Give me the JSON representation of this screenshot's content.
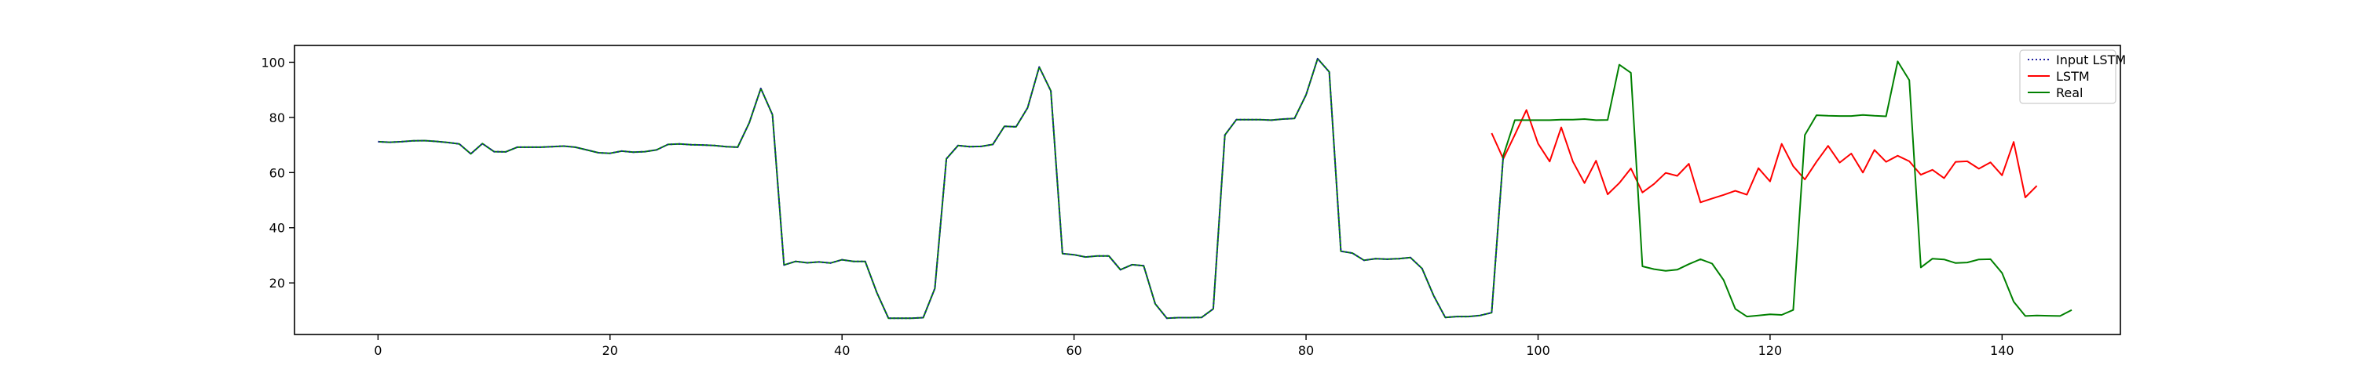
{
  "chart_data": {
    "type": "line",
    "title": "",
    "xlabel": "",
    "ylabel": "",
    "xlim": [
      -7.2,
      150.2
    ],
    "ylim": [
      1.3,
      106.1
    ],
    "x_ticks": [
      0,
      20,
      40,
      60,
      80,
      100,
      120,
      140
    ],
    "y_ticks": [
      20,
      40,
      60,
      80,
      100
    ],
    "grid": false,
    "legend_position": "top-right",
    "series": [
      {
        "name": "Input LSTM",
        "color": "#1f1f9f",
        "style": "dotted",
        "x_start": 0,
        "values": [
          71.2,
          71,
          71.2,
          71.5,
          71.6,
          71.3,
          70.9,
          70.4,
          66.8,
          70.5,
          67.6,
          67.5,
          69.2,
          69.2,
          69.2,
          69.4,
          69.6,
          69.2,
          68.2,
          67.2,
          67,
          67.8,
          67.4,
          67.6,
          68.2,
          70.2,
          70.4,
          70.1,
          70,
          69.8,
          69.4,
          69.2,
          78,
          90.5,
          81,
          26.5,
          27.8,
          27.3,
          27.6,
          27.2,
          28.4,
          27.8,
          27.8,
          16.5,
          7.2,
          7.2,
          7.2,
          7.4,
          18,
          65,
          69.8,
          69.4,
          69.5,
          70.2,
          76.8,
          76.6,
          83.5,
          98.3,
          89.6,
          30.6,
          30.2,
          29.4,
          29.8,
          29.8,
          24.8,
          26.6,
          26.2,
          12.4,
          7.2,
          7.4,
          7.4,
          7.5,
          10.6,
          73.6,
          79.2,
          79.2,
          79.2,
          79,
          79.4,
          79.6,
          88.2,
          101.3,
          96.5,
          31.5,
          30.8,
          28.2,
          28.8,
          28.6,
          28.8,
          29.2,
          25.2,
          15.4,
          7.5,
          7.8,
          7.8,
          8.2,
          9.2,
          66.1
        ]
      },
      {
        "name": "LSTM",
        "color": "#ff0000",
        "style": "solid",
        "x_start": 96,
        "values": [
          74.3,
          65,
          73.7,
          82.7,
          70.5,
          64,
          76.4,
          64,
          56.2,
          64.3,
          52.1,
          56.2,
          61.5,
          52.8,
          55.9,
          59.9,
          58.8,
          63.2,
          49.2,
          50.6,
          51.9,
          53.4,
          52,
          61.6,
          56.8,
          70.4,
          62.3,
          57.5,
          63.9,
          69.7,
          63.6,
          66.9,
          60,
          68.2,
          63.9,
          66.1,
          64.1,
          59.2,
          61,
          58,
          63.9,
          64.1,
          61.4,
          63.7,
          59,
          71.1,
          51,
          55.2
        ]
      },
      {
        "name": "Real",
        "color": "#008000",
        "style": "solid",
        "x_start": 0,
        "values": [
          71.2,
          71,
          71.2,
          71.5,
          71.6,
          71.3,
          70.9,
          70.4,
          66.8,
          70.5,
          67.6,
          67.5,
          69.2,
          69.2,
          69.2,
          69.4,
          69.6,
          69.2,
          68.2,
          67.2,
          67,
          67.8,
          67.4,
          67.6,
          68.2,
          70.2,
          70.4,
          70.1,
          70,
          69.8,
          69.4,
          69.2,
          78,
          90.5,
          81,
          26.5,
          27.8,
          27.3,
          27.6,
          27.2,
          28.4,
          27.8,
          27.8,
          16.5,
          7.2,
          7.2,
          7.2,
          7.4,
          18,
          65,
          69.8,
          69.4,
          69.5,
          70.2,
          76.8,
          76.6,
          83.5,
          98.3,
          89.6,
          30.6,
          30.2,
          29.4,
          29.8,
          29.8,
          24.8,
          26.6,
          26.2,
          12.4,
          7.2,
          7.4,
          7.4,
          7.5,
          10.6,
          73.6,
          79.2,
          79.2,
          79.2,
          79,
          79.4,
          79.6,
          88.2,
          101.3,
          96.5,
          31.5,
          30.8,
          28.2,
          28.8,
          28.6,
          28.8,
          29.2,
          25.2,
          15.4,
          7.5,
          7.8,
          7.8,
          8.2,
          9.2,
          66.1,
          79,
          79,
          79,
          79,
          79.2,
          79.2,
          79.4,
          79,
          79.1,
          99.1,
          96.2,
          26,
          25,
          24.4,
          24.8,
          26.8,
          28.6,
          27,
          21,
          10.6,
          7.8,
          8.2,
          8.6,
          8.4,
          10.2,
          73.6,
          80.8,
          80.6,
          80.5,
          80.5,
          80.9,
          80.6,
          80.4,
          100.3,
          93.5,
          25.6,
          28.8,
          28.5,
          27.2,
          27.4,
          28.5,
          28.6,
          23.6,
          13.2,
          8,
          8.2,
          8.1,
          8,
          10.2
        ]
      }
    ]
  }
}
